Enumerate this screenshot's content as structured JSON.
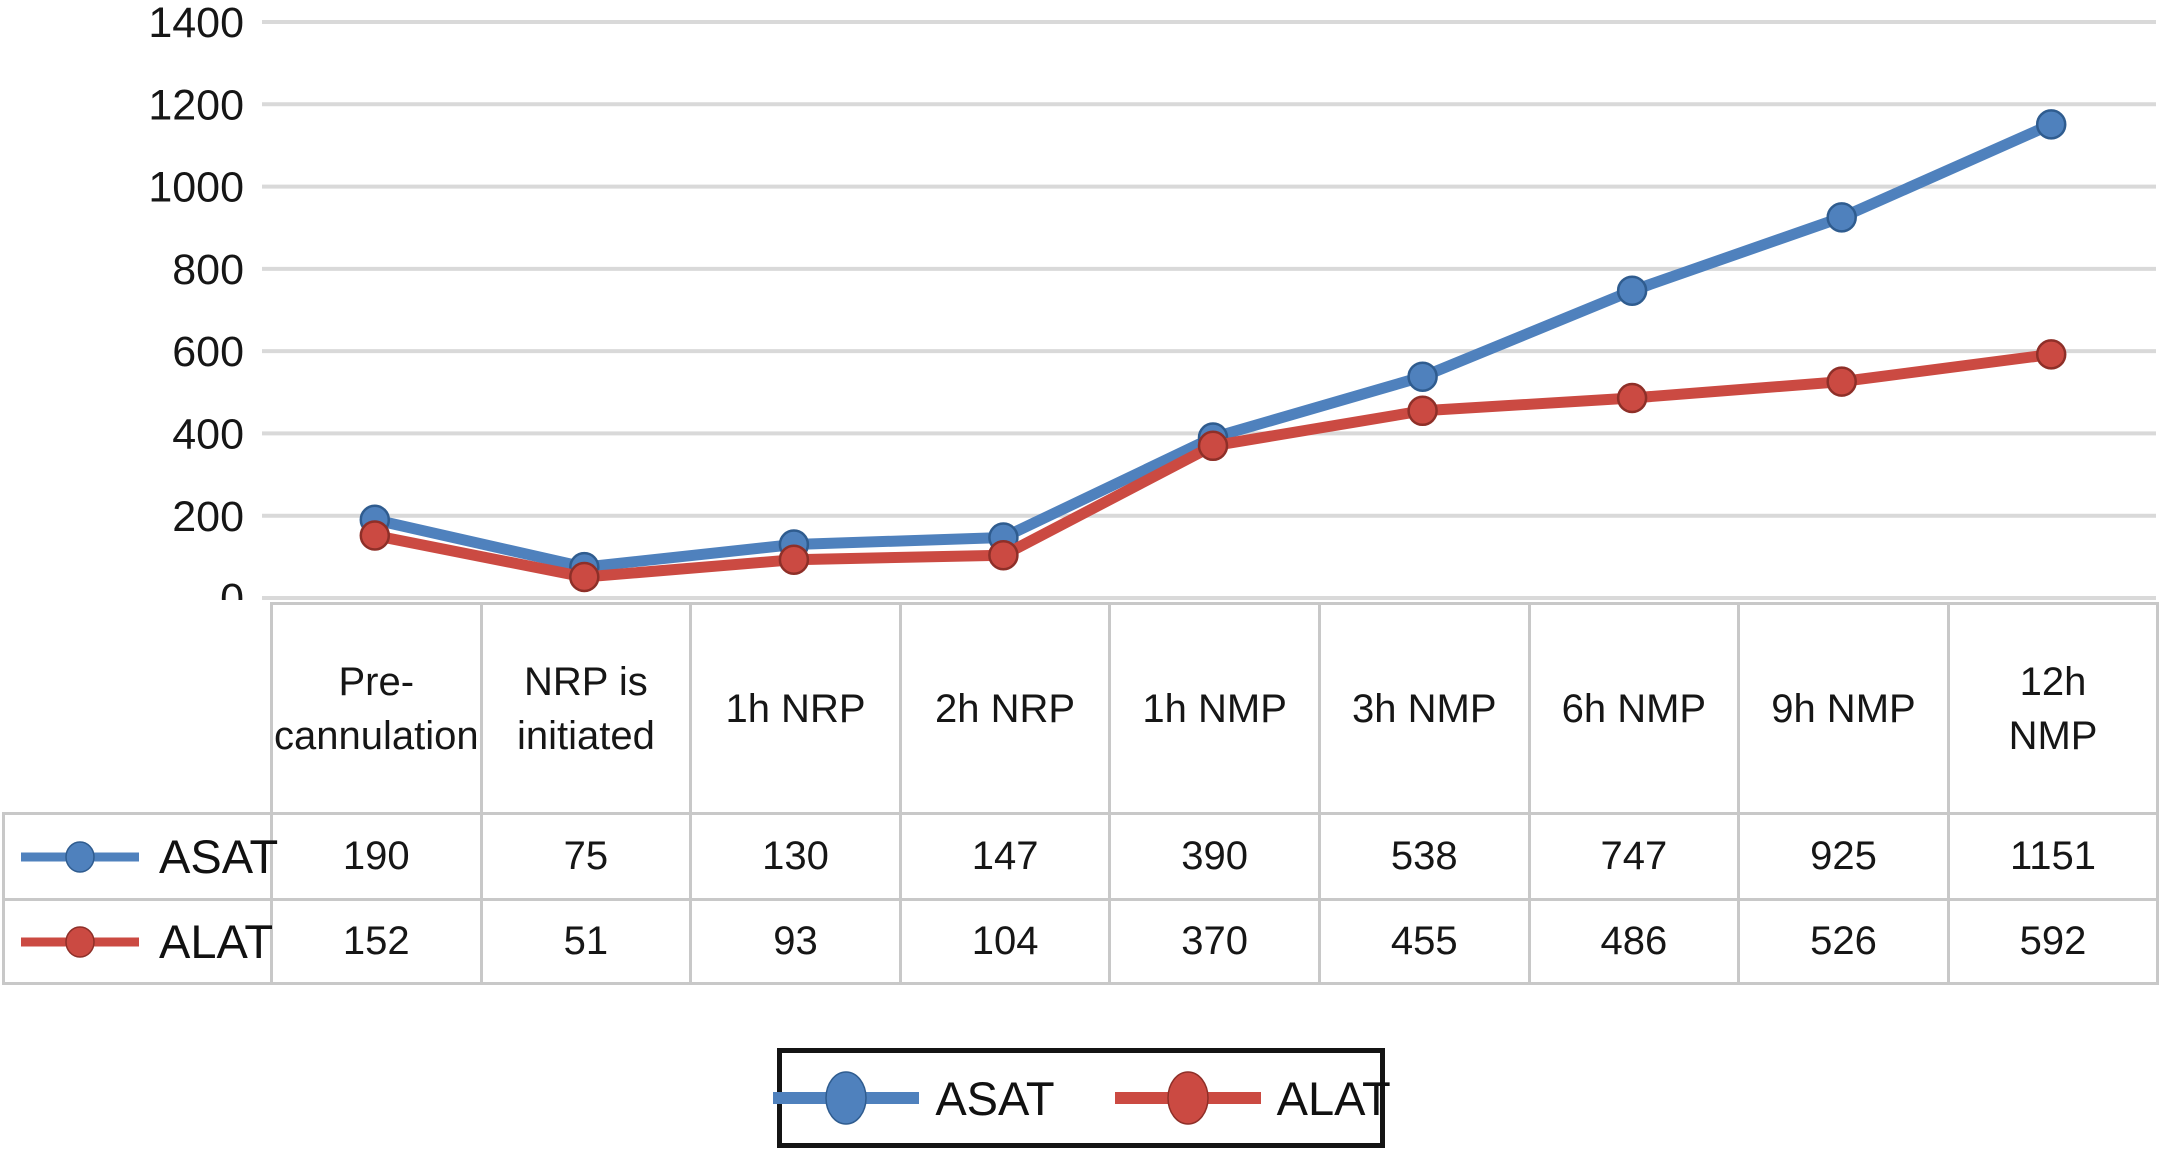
{
  "chart_data": {
    "type": "line",
    "title": "",
    "xlabel": "",
    "ylabel": "",
    "categories": [
      "Pre-\ncannulation",
      "NRP is\ninitiated",
      "1h NRP",
      "2h NRP",
      "1h NMP",
      "3h NMP",
      "6h NMP",
      "9h NMP",
      "12h\nNMP"
    ],
    "series": [
      {
        "name": "ASAT",
        "color": "#4f81bd",
        "marker_edge": "#2f5c8f",
        "values": [
          190,
          75,
          130,
          147,
          390,
          538,
          747,
          925,
          1151
        ]
      },
      {
        "name": "ALAT",
        "color": "#cb4a42",
        "marker_edge": "#8e2f28",
        "values": [
          152,
          51,
          93,
          104,
          370,
          455,
          486,
          526,
          592
        ]
      }
    ],
    "ylim": [
      0,
      1400
    ],
    "yticks": [
      0,
      200,
      400,
      600,
      800,
      1000,
      1200,
      1400
    ],
    "grid": "horizontal-only",
    "gridline_color": "#d9d9d9",
    "axis_text_color": "#161616",
    "legend_position": "bottom-boxed",
    "data_table_shown": true,
    "table_border_color": "#c8c8c8",
    "legend_border_color": "#141414"
  }
}
